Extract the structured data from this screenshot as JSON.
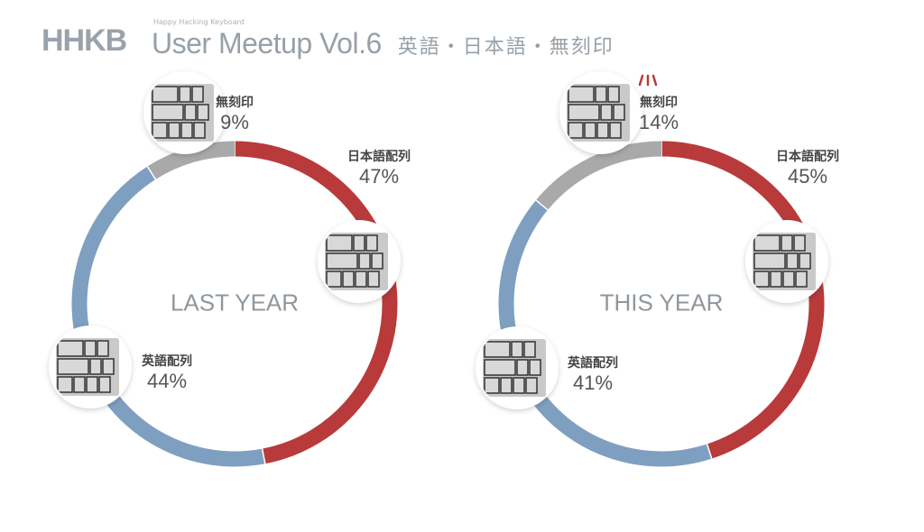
{
  "header": {
    "logo": "HHKB",
    "subtitle": "Happy Hacking Keyboard",
    "title": "User Meetup Vol.6",
    "title_jp": "英語・日本語・無刻印"
  },
  "chart_data": [
    {
      "type": "pie",
      "title": "LAST YEAR",
      "categories": [
        "日本語配列",
        "英語配列",
        "無刻印"
      ],
      "values": [
        47,
        44,
        9
      ],
      "labels": [
        "47%",
        "44%",
        "9%"
      ],
      "colors": [
        "#b83a3a",
        "#7f9fc0",
        "#a9a9a9"
      ]
    },
    {
      "type": "pie",
      "title": "THIS YEAR",
      "categories": [
        "日本語配列",
        "英語配列",
        "無刻印"
      ],
      "values": [
        45,
        41,
        14
      ],
      "labels": [
        "45%",
        "41%",
        "14%"
      ],
      "colors": [
        "#b83a3a",
        "#7f9fc0",
        "#a9a9a9"
      ]
    }
  ]
}
